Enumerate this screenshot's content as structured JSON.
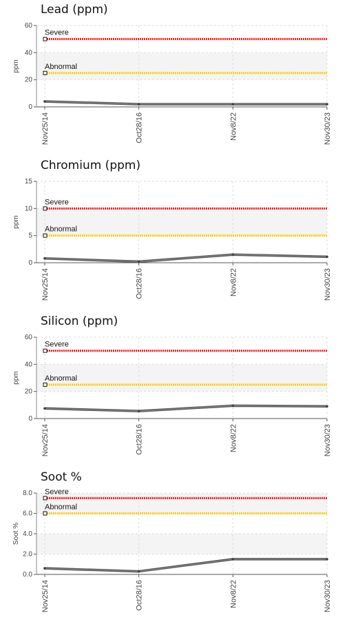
{
  "chart_data": [
    {
      "type": "line",
      "title": "Lead (ppm)",
      "ylabel": "ppm",
      "ylim": [
        0,
        60
      ],
      "yticks": [
        "0",
        "20",
        "40",
        "60"
      ],
      "x": [
        "Nov25/14",
        "Oct28/16",
        "Nov8/22",
        "Nov30/23"
      ],
      "series": [
        {
          "values": [
            4,
            2,
            2,
            2
          ]
        }
      ],
      "limits": [
        {
          "label": "Severe",
          "value": 50,
          "color": "#ff1a1a"
        },
        {
          "label": "Abnormal",
          "value": 25,
          "color": "#ffcc00"
        }
      ]
    },
    {
      "type": "line",
      "title": "Chromium (ppm)",
      "ylabel": "ppm",
      "ylim": [
        0,
        15
      ],
      "yticks": [
        "0",
        "5",
        "10",
        "15"
      ],
      "x": [
        "Nov25/14",
        "Oct28/16",
        "Nov8/22",
        "Nov30/23"
      ],
      "series": [
        {
          "values": [
            0.8,
            0.2,
            1.5,
            1.1
          ]
        }
      ],
      "limits": [
        {
          "label": "Severe",
          "value": 10,
          "color": "#ff1a1a"
        },
        {
          "label": "Abnormal",
          "value": 5,
          "color": "#ffcc00"
        }
      ]
    },
    {
      "type": "line",
      "title": "Silicon (ppm)",
      "ylabel": "ppm",
      "ylim": [
        0,
        60
      ],
      "yticks": [
        "0",
        "20",
        "40",
        "60"
      ],
      "x": [
        "Nov25/14",
        "Oct28/16",
        "Nov8/22",
        "Nov30/23"
      ],
      "series": [
        {
          "values": [
            7.5,
            5.5,
            9.5,
            9
          ]
        }
      ],
      "limits": [
        {
          "label": "Severe",
          "value": 50,
          "color": "#ff1a1a"
        },
        {
          "label": "Abnormal",
          "value": 25,
          "color": "#ffcc00"
        }
      ]
    },
    {
      "type": "line",
      "title": "Soot %",
      "ylabel": "Soot %",
      "ylim": [
        0,
        8
      ],
      "yticks": [
        "0.0",
        "2.0",
        "4.0",
        "6.0",
        "8.0"
      ],
      "x": [
        "Nov25/14",
        "Oct28/16",
        "Nov8/22",
        "Nov30/23"
      ],
      "series": [
        {
          "values": [
            0.6,
            0.3,
            1.5,
            1.5
          ]
        }
      ],
      "limits": [
        {
          "label": "Severe",
          "value": 7.5,
          "color": "#ff1a1a"
        },
        {
          "label": "Abnormal",
          "value": 6,
          "color": "#ffcc00"
        }
      ]
    }
  ]
}
